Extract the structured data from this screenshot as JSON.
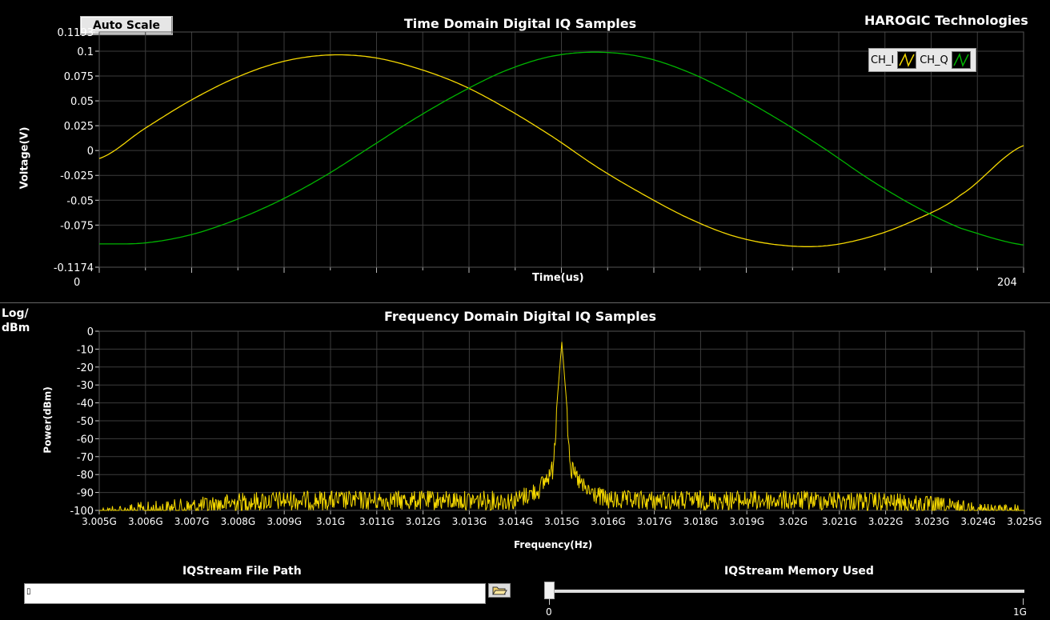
{
  "toolbar": {
    "auto_scale_label": "Auto Scale"
  },
  "brand": "HAROGIC Technologies",
  "time_plot": {
    "title": "Time Domain Digital IQ Samples",
    "xlabel": "Time(us)",
    "ylabel": "Voltage(V)",
    "x_start": "0",
    "x_end": "204",
    "yticks": [
      "0.1193",
      "0.1",
      "0.075",
      "0.05",
      "0.025",
      "0",
      "-0.025",
      "-0.05",
      "-0.075",
      "-0.1174"
    ],
    "legend": {
      "ch_i": "CH_I",
      "ch_q": "CH_Q"
    }
  },
  "freq_plot": {
    "scale_label_1": "Log/",
    "scale_label_2": "dBm",
    "title": "Frequency Domain Digital IQ Samples",
    "xlabel": "Frequency(Hz)",
    "ylabel": "Power(dBm)",
    "yticks": [
      "0",
      "-10",
      "-20",
      "-30",
      "-40",
      "-50",
      "-60",
      "-70",
      "-80",
      "-90",
      "-100"
    ],
    "xticks": [
      "3.005G",
      "3.006G",
      "3.007G",
      "3.008G",
      "3.009G",
      "3.01G",
      "3.011G",
      "3.012G",
      "3.013G",
      "3.014G",
      "3.015G",
      "3.016G",
      "3.017G",
      "3.018G",
      "3.019G",
      "3.02G",
      "3.021G",
      "3.022G",
      "3.023G",
      "3.024G",
      "3.025G"
    ]
  },
  "file_path": {
    "label": "IQStream File Path",
    "value": "",
    "cursor_glyph": "▯"
  },
  "memory": {
    "label": "IQStream Memory Used",
    "min_label": "0",
    "max_label": "1G",
    "fraction_used": 0.0
  },
  "colors": {
    "ch_i": "#f5d800",
    "ch_q": "#00b400",
    "grid": "#3c3c3c"
  },
  "icons": {
    "folder": "folder-icon"
  },
  "chart_data": [
    {
      "type": "line",
      "title": "Time Domain Digital IQ Samples",
      "xlabel": "Time(us)",
      "ylabel": "Voltage(V)",
      "xlim": [
        0,
        204
      ],
      "ylim": [
        -0.1174,
        0.1193
      ],
      "grid": true,
      "legend": "top-right",
      "x": [
        0,
        10,
        20,
        30,
        40,
        50,
        60,
        70,
        80,
        90,
        100,
        110,
        120,
        130,
        140,
        150,
        160,
        170,
        180,
        190,
        204
      ],
      "series": [
        {
          "name": "CH_I",
          "values": [
            -0.008,
            0.022,
            0.05,
            0.073,
            0.089,
            0.096,
            0.094,
            0.083,
            0.066,
            0.042,
            0.014,
            -0.017,
            -0.044,
            -0.068,
            -0.086,
            -0.095,
            -0.096,
            -0.087,
            -0.07,
            -0.045,
            0.005
          ]
        },
        {
          "name": "CH_Q",
          "values": [
            -0.094,
            -0.093,
            -0.085,
            -0.07,
            -0.05,
            -0.025,
            0.004,
            0.033,
            0.059,
            0.081,
            0.095,
            0.099,
            0.094,
            0.079,
            0.057,
            0.031,
            0.002,
            -0.029,
            -0.056,
            -0.078,
            -0.095
          ]
        }
      ]
    },
    {
      "type": "line",
      "title": "Frequency Domain Digital IQ Samples",
      "xlabel": "Frequency(Hz)",
      "ylabel": "Power(dBm)",
      "xlim": [
        3.005,
        3.025
      ],
      "ylim": [
        -100,
        0
      ],
      "grid": true,
      "series": [
        {
          "x": [
            3.005,
            3.006,
            3.007,
            3.008,
            3.009,
            3.01,
            3.011,
            3.012,
            3.013,
            3.014,
            3.0145,
            3.0148,
            3.015,
            3.0152,
            3.0155,
            3.016,
            3.017,
            3.018,
            3.019,
            3.02,
            3.021,
            3.022,
            3.023,
            3.024,
            3.025
          ],
          "values": [
            -97,
            -95,
            -93,
            -90,
            -89,
            -89,
            -89,
            -89,
            -89,
            -89,
            -83,
            -72,
            -6,
            -72,
            -83,
            -89,
            -89,
            -89,
            -89,
            -89,
            -89,
            -90,
            -92,
            -95,
            -97
          ]
        }
      ]
    }
  ]
}
